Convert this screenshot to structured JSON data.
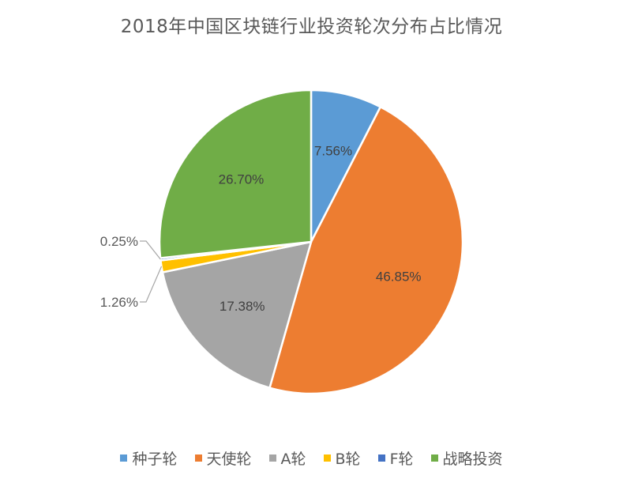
{
  "chart_data": {
    "type": "pie",
    "title": "2018年中国区块链行业投资轮次分布占比情况",
    "legend_position": "bottom",
    "series": [
      {
        "name": "种子轮",
        "value": 7.56,
        "label": "7.56%",
        "color": "#5B9BD5"
      },
      {
        "name": "天使轮",
        "value": 46.85,
        "label": "46.85%",
        "color": "#ED7D31"
      },
      {
        "name": "A轮",
        "value": 17.38,
        "label": "17.38%",
        "color": "#A5A5A5"
      },
      {
        "name": "B轮",
        "value": 1.26,
        "label": "1.26%",
        "color": "#FFC000"
      },
      {
        "name": "F轮",
        "value": 0.25,
        "label": "0.25%",
        "color": "#4472C4"
      },
      {
        "name": "战略投资",
        "value": 26.7,
        "label": "26.70%",
        "color": "#70AD47"
      }
    ]
  }
}
